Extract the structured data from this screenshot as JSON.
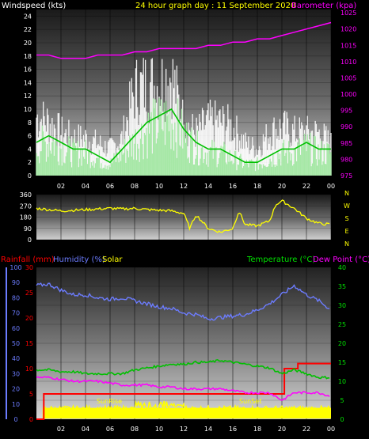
{
  "header": {
    "title": "24 hour graph day : 11 September 2020",
    "left_label": "Windspeed (kts)",
    "right_label": "Barometer (kpa)"
  },
  "colors": {
    "yellow": "#ffff00",
    "white": "#ffffff",
    "magenta": "#ff00ff",
    "green": "#00c000",
    "red": "#ff0000",
    "blue": "#6c7cff",
    "paleGreen": "#a6e8a6"
  },
  "chart_data": [
    {
      "type": "line",
      "name": "wind",
      "x_ticks": [
        "02",
        "04",
        "06",
        "08",
        "10",
        "12",
        "14",
        "16",
        "18",
        "20",
        "22",
        "00"
      ],
      "ylim": [
        0,
        25
      ],
      "y_ticks": [
        0,
        2,
        4,
        6,
        8,
        10,
        12,
        14,
        16,
        18,
        20,
        22,
        24
      ],
      "y2lim": [
        975,
        1026
      ],
      "y2_ticks": [
        975,
        980,
        985,
        990,
        995,
        1000,
        1005,
        1010,
        1015,
        1020,
        1025
      ],
      "ylabel": "Windspeed (kts)",
      "y2label": "Barometer (kpa)",
      "series": [
        {
          "name": "gust",
          "hours": [
            0,
            1,
            2,
            3,
            4,
            5,
            6,
            7,
            8,
            9,
            10,
            11,
            12,
            13,
            14,
            15,
            16,
            17,
            18,
            19,
            20,
            21,
            22,
            23,
            24
          ],
          "values": [
            11,
            10,
            8,
            7,
            7,
            6,
            5,
            7,
            16,
            17,
            17,
            19,
            10,
            8,
            10,
            10,
            9,
            6,
            5,
            8,
            9,
            8,
            8,
            8,
            6
          ]
        },
        {
          "name": "average",
          "hours": [
            0,
            1,
            2,
            3,
            4,
            5,
            6,
            7,
            8,
            9,
            10,
            11,
            12,
            13,
            14,
            15,
            16,
            17,
            18,
            19,
            20,
            21,
            22,
            23,
            24
          ],
          "values": [
            5,
            6,
            5,
            4,
            4,
            3,
            2,
            4,
            6,
            8,
            9,
            10,
            7,
            5,
            4,
            4,
            3,
            2,
            2,
            3,
            4,
            4,
            5,
            4,
            4
          ]
        },
        {
          "name": "barometer",
          "hours": [
            0,
            1,
            2,
            3,
            4,
            5,
            6,
            7,
            8,
            9,
            10,
            11,
            12,
            13,
            14,
            15,
            16,
            17,
            18,
            19,
            20,
            21,
            22,
            23,
            24
          ],
          "values": [
            1012,
            1012,
            1011,
            1011,
            1011,
            1012,
            1012,
            1012,
            1013,
            1013,
            1014,
            1014,
            1014,
            1014,
            1015,
            1015,
            1016,
            1016,
            1017,
            1017,
            1018,
            1019,
            1020,
            1021,
            1022
          ]
        }
      ]
    },
    {
      "type": "line",
      "name": "direction",
      "x_ticks": [
        "02",
        "04",
        "06",
        "08",
        "10",
        "12",
        "14",
        "16",
        "18",
        "20",
        "22",
        "00"
      ],
      "ylim": [
        0,
        360
      ],
      "y_ticks": [
        0,
        90,
        180,
        270,
        360
      ],
      "compass": [
        "N",
        "W",
        "S",
        "E",
        "N"
      ],
      "series": [
        {
          "name": "direction",
          "hours": [
            0,
            1,
            2,
            3,
            4,
            5,
            6,
            7,
            8,
            9,
            10,
            11,
            12,
            12.5,
            13,
            14,
            15,
            16,
            16.5,
            17,
            18,
            19,
            19.5,
            20,
            21,
            22,
            23,
            24
          ],
          "values": [
            250,
            240,
            230,
            235,
            240,
            245,
            250,
            245,
            250,
            240,
            235,
            230,
            210,
            90,
            200,
            90,
            60,
            90,
            230,
            120,
            110,
            150,
            280,
            310,
            250,
            170,
            130,
            120
          ]
        }
      ]
    },
    {
      "type": "line",
      "name": "climate",
      "x_ticks": [
        "02",
        "04",
        "06",
        "08",
        "10",
        "12",
        "14",
        "16",
        "18",
        "20",
        "22",
        "00"
      ],
      "left_scale_blue": [
        0,
        10,
        20,
        30,
        40,
        50,
        60,
        70,
        80,
        90,
        100
      ],
      "left_scale_red": [
        0,
        5,
        10,
        15,
        20,
        25,
        30
      ],
      "right_scale": [
        0,
        5,
        10,
        15,
        20,
        25,
        30,
        35,
        40
      ],
      "labels": {
        "rainfall": "Rainfall (mm)",
        "humidity": "Humidity (%)",
        "solar": "Solar",
        "temperature": "Temperature (°C)",
        "dewpoint": "Dew Point (°C)"
      },
      "annotations": {
        "sunrise": "SunRise",
        "sunset": "SunSet"
      },
      "series": [
        {
          "name": "humidity",
          "hours": [
            0,
            1,
            2,
            3,
            4,
            5,
            6,
            7,
            8,
            9,
            10,
            11,
            12,
            13,
            14,
            15,
            16,
            17,
            18,
            19,
            20,
            21,
            22,
            23,
            24
          ],
          "values": [
            88,
            89,
            85,
            82,
            82,
            80,
            79,
            80,
            78,
            76,
            74,
            73,
            70,
            69,
            66,
            67,
            68,
            69,
            72,
            76,
            82,
            88,
            82,
            78,
            72
          ]
        },
        {
          "name": "temperature",
          "hours": [
            0,
            1,
            2,
            3,
            4,
            5,
            6,
            7,
            8,
            9,
            10,
            11,
            12,
            13,
            14,
            15,
            16,
            17,
            18,
            19,
            20,
            21,
            22,
            23,
            24
          ],
          "values": [
            13,
            13,
            12.5,
            12.5,
            12,
            12,
            12,
            12,
            13,
            13.5,
            14,
            14.5,
            14.5,
            15,
            15,
            15.5,
            15,
            14.5,
            14,
            13.5,
            12,
            13,
            12,
            11,
            11
          ]
        },
        {
          "name": "dewpoint",
          "hours": [
            0,
            1,
            2,
            3,
            4,
            5,
            6,
            7,
            8,
            9,
            10,
            11,
            12,
            13,
            14,
            15,
            16,
            17,
            18,
            19,
            20,
            21,
            22,
            23,
            24
          ],
          "values": [
            11,
            11,
            10.5,
            10,
            10,
            10,
            9.5,
            9,
            9,
            9,
            8.5,
            8.5,
            8,
            8,
            8,
            8,
            7.5,
            7,
            7,
            7,
            5,
            7,
            7,
            7,
            6
          ]
        },
        {
          "name": "rainfall",
          "hours": [
            0,
            0.6,
            0.6,
            20.2,
            20.2,
            21.3,
            21.3,
            24
          ],
          "values": [
            0,
            0,
            5,
            5,
            10,
            10,
            11,
            11
          ]
        }
      ]
    }
  ]
}
